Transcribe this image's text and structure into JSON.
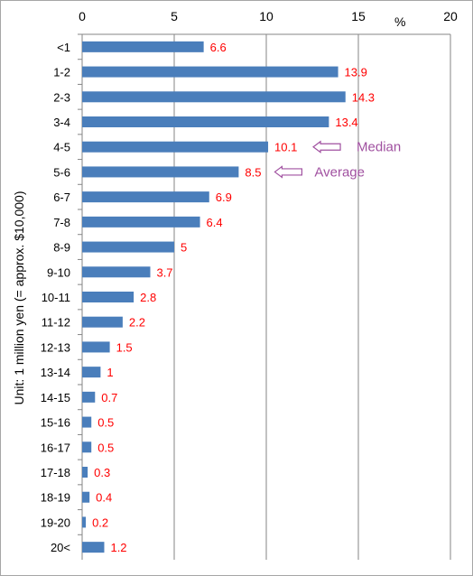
{
  "chart_data": {
    "type": "bar",
    "orientation": "horizontal",
    "title": "",
    "ylabel": "Unit: 1 million yen (= approx. $10,000)",
    "xunit": "%",
    "xlim": [
      0,
      20
    ],
    "xticks": [
      "0",
      "5",
      "10",
      "15",
      "20"
    ],
    "categories": [
      "<1",
      "1-2",
      "2-3",
      "3-4",
      "4-5",
      "5-6",
      "6-7",
      "7-8",
      "8-9",
      "9-10",
      "10-11",
      "11-12",
      "12-13",
      "13-14",
      "14-15",
      "15-16",
      "16-17",
      "17-18",
      "18-19",
      "19-20",
      "20<"
    ],
    "values": [
      6.6,
      13.9,
      14.3,
      13.4,
      10.1,
      8.5,
      6.9,
      6.4,
      5,
      3.7,
      2.8,
      2.2,
      1.5,
      1,
      0.7,
      0.5,
      0.5,
      0.3,
      0.4,
      0.2,
      1.2
    ],
    "value_labels": [
      "6.6",
      "13.9",
      "14.3",
      "13.4",
      "10.1",
      "8.5",
      "6.9",
      "6.4",
      "5",
      "3.7",
      "2.8",
      "2.2",
      "1.5",
      "1",
      "0.7",
      "0.5",
      "0.5",
      "0.3",
      "0.4",
      "0.2",
      "1.2"
    ],
    "grid": "vertical",
    "legend": "none",
    "annotations": [
      {
        "text": "Median",
        "category": "4-5"
      },
      {
        "text": "Average",
        "category": "5-6"
      }
    ],
    "colors": {
      "bar": "#4a7ebb",
      "data_label": "#ff0000",
      "annotation": "#a050a0",
      "grid": "#868686"
    }
  }
}
